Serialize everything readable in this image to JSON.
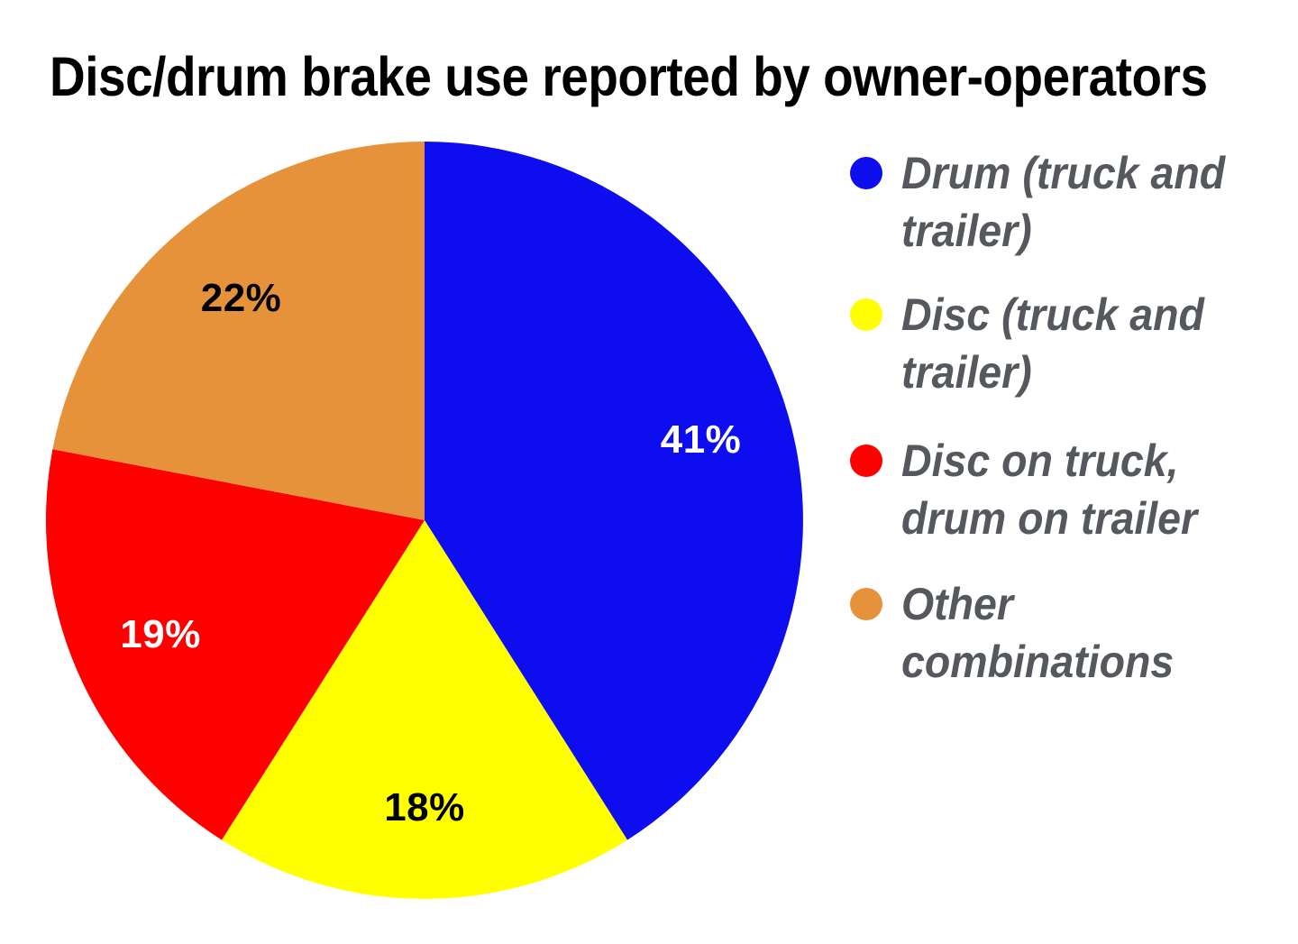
{
  "title": {
    "text": "Disc/drum brake use reported by owner-operators",
    "color": "#000000"
  },
  "chart_data": {
    "type": "pie",
    "title": "Disc/drum brake use reported by owner-operators",
    "unit": "percent",
    "start_angle_deg": 0,
    "direction": "clockwise",
    "legend_position": "right",
    "grid": false,
    "slices": [
      {
        "label": "Drum (truck and trailer)",
        "value": 41,
        "data_label": "41%",
        "color": "#0d0df0",
        "data_label_color": "#ffffff"
      },
      {
        "label": "Disc (truck and trailer)",
        "value": 18,
        "data_label": "18%",
        "color": "#ffff00",
        "data_label_color": "#000000"
      },
      {
        "label": "Disc on truck, drum on trailer",
        "value": 19,
        "data_label": "19%",
        "color": "#ff0000",
        "data_label_color": "#ffffff"
      },
      {
        "label": "Other combinations",
        "value": 22,
        "data_label": "22%",
        "color": "#e5923a",
        "data_label_color": "#000000"
      }
    ],
    "legend_text_color": "#55585c",
    "background_color": "#ffffff"
  }
}
